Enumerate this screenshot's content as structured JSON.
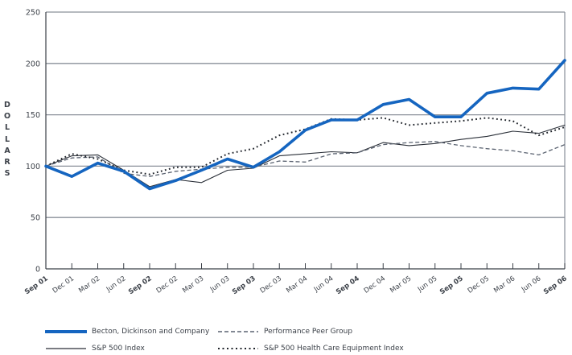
{
  "chart_data": {
    "type": "line",
    "title": "",
    "xlabel": "",
    "ylabel": "DOLLARS",
    "ylim": [
      0,
      250
    ],
    "yticks": [
      0,
      50,
      100,
      150,
      200,
      250
    ],
    "grid": true,
    "legend_position": "bottom",
    "categories": [
      "Sep 01",
      "Dec 01",
      "Mar 02",
      "Jun 02",
      "Sep 02",
      "Dec 02",
      "Mar 03",
      "Jun 03",
      "Sep 03",
      "Dec 03",
      "Mar 04",
      "Jun 04",
      "Sep 04",
      "Dec 04",
      "Mar 05",
      "Jun 05",
      "Sep 05",
      "Dec 05",
      "Mar 06",
      "Jun 06",
      "Sep 06"
    ],
    "bold_categories": [
      "Sep 01",
      "Sep 02",
      "Sep 03",
      "Sep 04",
      "Sep 05",
      "Sep 06"
    ],
    "series": [
      {
        "name": "Becton, Dickinson and Company",
        "style": "thick-solid",
        "color": "#1565c0",
        "values": [
          100,
          90,
          103,
          95,
          78,
          86,
          96,
          107,
          99,
          114,
          135,
          145,
          145,
          160,
          165,
          148,
          148,
          171,
          176,
          175,
          203
        ]
      },
      {
        "name": "Performance Peer Group",
        "style": "dashed",
        "color": "#5a6270",
        "values": [
          100,
          108,
          109,
          93,
          90,
          95,
          97,
          99,
          99,
          105,
          104,
          112,
          113,
          121,
          123,
          124,
          120,
          117,
          115,
          111,
          121
        ]
      },
      {
        "name": "S&P 500 Index",
        "style": "thin-solid",
        "color": "#2a2f38",
        "values": [
          100,
          110,
          111,
          96,
          80,
          87,
          84,
          96,
          98,
          110,
          112,
          114,
          113,
          123,
          120,
          122,
          126,
          129,
          134,
          132,
          140
        ]
      },
      {
        "name": "S&P 500 Health Care Equipment Index",
        "style": "dotted",
        "color": "#1f232a",
        "values": [
          100,
          112,
          107,
          96,
          92,
          99,
          99,
          112,
          117,
          130,
          136,
          146,
          145,
          147,
          140,
          142,
          144,
          147,
          144,
          130,
          138
        ]
      }
    ]
  },
  "axis": {
    "y_title_letters": [
      "D",
      "O",
      "L",
      "L",
      "A",
      "R",
      "S"
    ]
  },
  "colors": {
    "grid": "#8a9099",
    "axis": "#3b4048",
    "text": "#3b4048"
  }
}
